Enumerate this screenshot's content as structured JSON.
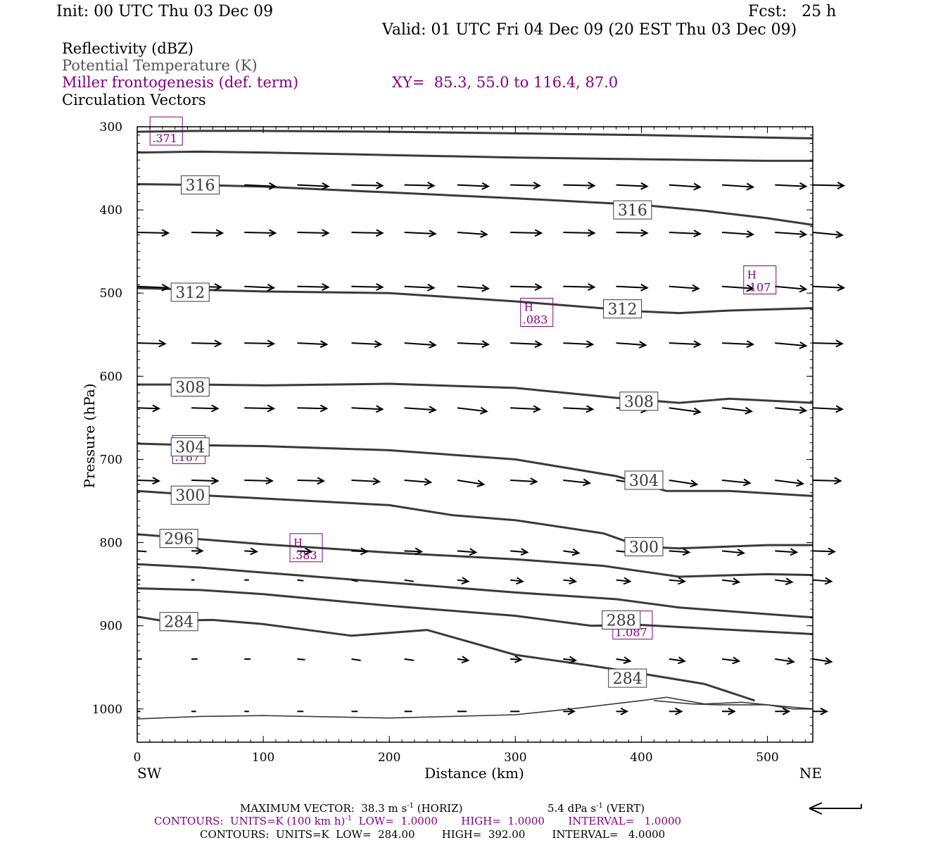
{
  "header": {
    "init": "Init: 00 UTC Thu 03 Dec 09",
    "fcst": "Fcst:   25 h",
    "valid": "Valid: 01 UTC Fri 04 Dec 09 (20 EST Thu 03 Dec 09)"
  },
  "legend": {
    "reflectivity": "Reflectivity (dBZ)",
    "theta": "Potential Temperature (K)",
    "miller": "Miller frontogenesis (def. term)",
    "xy": "XY=  85.3, 55.0 to 116.4, 87.0",
    "vectors": "Circulation Vectors"
  },
  "colors": {
    "theta": "#3a3a3a",
    "front": "#800080",
    "vector": "#000000",
    "axis": "#000000"
  },
  "footer": {
    "max_vector": "MAXIMUM VECTOR:  38.3 m s",
    "max_vector_vert": "5.4 dPa s",
    "exp": "-1",
    "horiz": " (HORIZ)",
    "vert": " (VERT)",
    "c1_units": "CONTOURS:  UNITS=K (100 km h)",
    "c1_rest": "  LOW=  1.0000       HIGH=  1.0000       INTERVAL=   1.0000",
    "c2": "CONTOURS:  UNITS=K  LOW=  284.00        HIGH=  392.00        INTERVAL=   4.0000"
  },
  "chart_data": {
    "type": "line",
    "xlabel": "Distance (km)",
    "ylabel": "Pressure (hPa)",
    "xlim": [
      0,
      536
    ],
    "ylim": [
      1040,
      300
    ],
    "x_ticks": [
      0,
      100,
      200,
      300,
      400,
      500
    ],
    "y_ticks": [
      300,
      400,
      500,
      600,
      700,
      800,
      900,
      1000
    ],
    "end_labels": {
      "left": "SW",
      "right": "NE"
    },
    "theta_contours": [
      {
        "x": [
          0,
          50,
          100,
          200,
          300,
          400,
          500,
          536
        ],
        "p": [
          306,
          305,
          305,
          306,
          308,
          310,
          313,
          314
        ]
      },
      {
        "x": [
          0,
          50,
          100,
          200,
          300,
          400,
          500,
          536
        ],
        "p": [
          331,
          330,
          331,
          334,
          337,
          339,
          341,
          341
        ]
      },
      {
        "x": [
          0,
          50,
          100,
          200,
          300,
          400,
          450,
          500,
          536
        ],
        "p": [
          369,
          370,
          372,
          379,
          386,
          394,
          401,
          410,
          418
        ]
      },
      {
        "x": [
          0,
          50,
          100,
          200,
          300,
          400,
          430,
          470,
          536
        ],
        "p": [
          494,
          496,
          498,
          500,
          510,
          522,
          524,
          521,
          518
        ]
      },
      {
        "x": [
          0,
          50,
          100,
          200,
          300,
          380,
          430,
          470,
          536
        ],
        "p": [
          610,
          610,
          611,
          609,
          614,
          626,
          632,
          627,
          632
        ]
      },
      {
        "x": [
          0,
          50,
          100,
          200,
          300,
          380,
          420,
          470,
          536
        ],
        "p": [
          681,
          683,
          684,
          689,
          700,
          720,
          738,
          738,
          744
        ]
      },
      {
        "x": [
          0,
          50,
          100,
          200,
          250,
          300,
          370,
          400,
          430,
          500,
          536
        ],
        "p": [
          738,
          743,
          747,
          755,
          767,
          773,
          789,
          805,
          807,
          803,
          803
        ]
      },
      {
        "x": [
          0,
          50,
          100,
          200,
          300,
          370,
          430,
          500,
          536
        ],
        "p": [
          790,
          796,
          802,
          812,
          820,
          828,
          841,
          838,
          839
        ]
      },
      {
        "x": [
          0,
          50,
          100,
          200,
          300,
          380,
          430,
          500,
          536
        ],
        "p": [
          826,
          830,
          836,
          848,
          860,
          868,
          878,
          886,
          890
        ]
      },
      {
        "x": [
          0,
          50,
          100,
          200,
          300,
          360,
          400,
          460,
          536
        ],
        "p": [
          855,
          857,
          862,
          876,
          888,
          900,
          899,
          904,
          910
        ]
      },
      {
        "x": [
          0,
          20,
          60,
          100,
          170,
          230,
          300,
          360,
          390,
          430,
          450,
          480,
          490
        ],
        "p": [
          889,
          894,
          893,
          898,
          912,
          905,
          935,
          948,
          955,
          965,
          970,
          985,
          990
        ]
      },
      {
        "x": [
          0,
          50,
          100,
          200,
          300,
          350,
          400,
          420,
          450,
          480,
          500,
          536
        ],
        "p": [
          1012,
          1009,
          1008,
          1011,
          1007,
          999,
          990,
          986,
          994,
          992,
          995,
          1000
        ]
      },
      {
        "x": [
          410,
          440,
          460,
          480,
          500,
          520,
          536
        ],
        "p": [
          990,
          994,
          995,
          995,
          995,
          1000,
          1000
        ]
      }
    ],
    "theta_labels": [
      {
        "text": "316",
        "x": 50,
        "p": 370
      },
      {
        "text": "316",
        "x": 393,
        "p": 400
      },
      {
        "text": "312",
        "x": 42,
        "p": 499
      },
      {
        "text": "312",
        "x": 385,
        "p": 519
      },
      {
        "text": "308",
        "x": 42,
        "p": 613
      },
      {
        "text": "308",
        "x": 398,
        "p": 630
      },
      {
        "text": "304",
        "x": 42,
        "p": 685
      },
      {
        "text": "304",
        "x": 402,
        "p": 725
      },
      {
        "text": "300",
        "x": 42,
        "p": 743
      },
      {
        "text": "300",
        "x": 402,
        "p": 805
      },
      {
        "text": "296",
        "x": 33,
        "p": 795
      },
      {
        "text": "288",
        "x": 384,
        "p": 893
      },
      {
        "text": "284",
        "x": 33,
        "p": 895
      },
      {
        "text": "284",
        "x": 389,
        "p": 963
      }
    ],
    "front_labels": [
      {
        "letter": "",
        "value": ".371",
        "x": 23,
        "p": 306
      },
      {
        "letter": "H",
        "value": ".107",
        "x": 494,
        "p": 485
      },
      {
        "letter": "H",
        "value": ".083",
        "x": 317,
        "p": 524
      },
      {
        "letter": "H",
        "value": ".187",
        "x": 41,
        "p": 689
      },
      {
        "letter": "H",
        "value": ".383",
        "x": 134,
        "p": 807
      },
      {
        "letter": "",
        "value": "1.087",
        "x": 393,
        "p": 900
      }
    ],
    "vector_rows": [
      {
        "p": 370,
        "u": [
          0,
          0,
          1.0,
          1.0,
          1.0,
          0.95,
          1.0,
          0.95,
          1.0,
          1.0,
          1.0,
          1.0,
          1.0,
          1.0
        ],
        "w": [
          0,
          0,
          -2,
          -2,
          -1,
          -1,
          -2,
          -1,
          -1,
          -2,
          -3,
          -3,
          -2,
          -1
        ]
      },
      {
        "p": 427,
        "u": [
          1.0,
          1.0,
          1.0,
          1.0,
          1.0,
          1.0,
          0.95,
          1.0,
          1.0,
          1.0,
          1.0,
          1.0,
          1.0,
          0.95
        ],
        "w": [
          -1,
          -1,
          -1,
          -1,
          -1,
          -2,
          -3,
          -1,
          -1,
          -1,
          -2,
          -3,
          -3,
          -4
        ]
      },
      {
        "p": 492,
        "u": [
          1.0,
          0.95,
          0.95,
          1.0,
          1.0,
          0.95,
          1.0,
          1.0,
          1.0,
          1.0,
          0.95,
          1.0,
          1.0,
          1.0
        ],
        "w": [
          -2,
          -1,
          -2,
          -1,
          -1,
          -2,
          -3,
          -1,
          -1,
          -2,
          -3,
          -3,
          -4,
          -2
        ]
      },
      {
        "p": 560,
        "u": [
          0.9,
          0.95,
          0.95,
          0.95,
          0.95,
          1.0,
          1.0,
          1.0,
          0.95,
          0.95,
          1.0,
          1.0,
          1.0,
          0.95
        ],
        "w": [
          -1,
          -1,
          -1,
          -2,
          -2,
          -3,
          -2,
          -2,
          -2,
          -3,
          -2,
          -2,
          -4,
          -1
        ]
      },
      {
        "p": 638,
        "u": [
          0.7,
          0.85,
          0.95,
          0.95,
          1.0,
          1.0,
          0.95,
          0.95,
          0.95,
          1.0,
          1.0,
          0.95,
          1.0,
          0.95
        ],
        "w": [
          -1,
          -1,
          -1,
          -1,
          -2,
          -3,
          -5,
          -2,
          -2,
          -3,
          -6,
          -5,
          -4,
          -2
        ]
      },
      {
        "p": 725,
        "u": [
          0.7,
          0.85,
          0.9,
          0.85,
          0.9,
          0.85,
          0.85,
          0.85,
          0.85,
          0.9,
          0.9,
          0.9,
          0.9,
          0.9
        ],
        "w": [
          -1,
          -1,
          -1,
          -1,
          -2,
          -3,
          -6,
          -2,
          -4,
          -6,
          -6,
          -4,
          -5,
          -1
        ]
      },
      {
        "p": 810,
        "u": [
          0.3,
          0.35,
          0.4,
          0.45,
          0.5,
          0.55,
          0.6,
          0.55,
          0.5,
          0.65,
          0.65,
          0.7,
          0.7,
          0.7
        ],
        "w": [
          -1,
          0,
          -1,
          -1,
          -1,
          -1,
          -2,
          -2,
          -3,
          -3,
          -2,
          -3,
          -2,
          -1
        ]
      },
      {
        "p": 845,
        "u": [
          0.1,
          0.1,
          0.15,
          0.2,
          0.2,
          0.3,
          0.35,
          0.4,
          0.4,
          0.45,
          0.5,
          0.55,
          0.55,
          0.6
        ],
        "w": [
          0,
          0,
          0,
          -1,
          -2,
          -2,
          -2,
          -2,
          -2,
          -2,
          -2,
          -3,
          -3,
          -2
        ]
      },
      {
        "p": 940,
        "u": [
          0.15,
          0.2,
          0.2,
          0.25,
          0.3,
          0.3,
          0.35,
          0.35,
          0.4,
          0.45,
          0.5,
          0.55,
          0.6,
          0.6
        ],
        "w": [
          0,
          0,
          0,
          -1,
          -2,
          -2,
          -2,
          -1,
          -2,
          -3,
          -3,
          -3,
          -4,
          -4
        ]
      },
      {
        "p": 1003,
        "u": [
          0.1,
          0.15,
          0.15,
          0.2,
          0.2,
          0.25,
          0.3,
          0.3,
          0.35,
          0.35,
          0.4,
          0.4,
          0.45,
          0.45
        ],
        "w": [
          0,
          0,
          0,
          0,
          0,
          0,
          0,
          0,
          0,
          0,
          0,
          0,
          0,
          0
        ]
      }
    ],
    "vector_x": [
      0,
      43,
      85,
      127,
      170,
      212,
      254,
      296,
      338,
      380,
      422,
      464,
      506,
      536
    ]
  }
}
